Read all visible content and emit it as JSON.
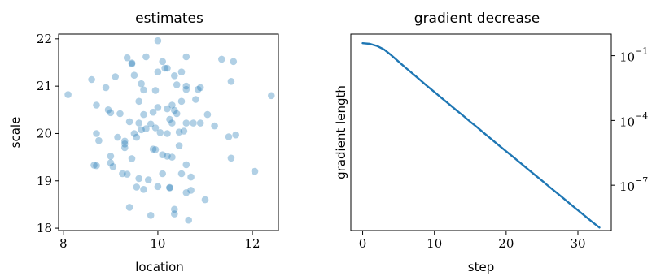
{
  "chart_data": [
    {
      "type": "scatter",
      "title": "estimates",
      "xlabel": "location",
      "ylabel": "scale",
      "xlim": [
        7.9,
        12.55
      ],
      "ylim": [
        17.95,
        22.1
      ],
      "xticks": [
        8,
        10,
        12
      ],
      "yticks": [
        18,
        19,
        20,
        21,
        22
      ],
      "grid": false,
      "marker_color": "#1f77b4",
      "marker_alpha": 0.35,
      "points": [
        [
          8.1,
          20.82
        ],
        [
          8.6,
          21.14
        ],
        [
          8.7,
          20.6
        ],
        [
          8.7,
          20.0
        ],
        [
          8.65,
          19.33
        ],
        [
          8.7,
          19.32
        ],
        [
          8.75,
          19.85
        ],
        [
          8.9,
          20.97
        ],
        [
          8.95,
          20.5
        ],
        [
          9.0,
          20.44
        ],
        [
          9.0,
          19.52
        ],
        [
          9.0,
          19.38
        ],
        [
          9.05,
          19.3
        ],
        [
          9.1,
          21.2
        ],
        [
          9.15,
          19.92
        ],
        [
          9.2,
          20.42
        ],
        [
          9.25,
          19.15
        ],
        [
          9.3,
          19.78
        ],
        [
          9.3,
          19.7
        ],
        [
          9.3,
          19.84
        ],
        [
          9.35,
          19.14
        ],
        [
          9.35,
          21.6
        ],
        [
          9.4,
          20.25
        ],
        [
          9.4,
          18.44
        ],
        [
          9.45,
          21.49
        ],
        [
          9.45,
          21.47
        ],
        [
          9.45,
          19.47
        ],
        [
          9.5,
          21.23
        ],
        [
          9.5,
          20.0
        ],
        [
          9.55,
          19.92
        ],
        [
          9.55,
          18.87
        ],
        [
          9.6,
          19.05
        ],
        [
          9.6,
          20.68
        ],
        [
          9.6,
          20.22
        ],
        [
          9.65,
          21.05
        ],
        [
          9.65,
          20.08
        ],
        [
          9.7,
          20.92
        ],
        [
          9.7,
          20.4
        ],
        [
          9.7,
          18.82
        ],
        [
          9.75,
          21.62
        ],
        [
          9.75,
          20.1
        ],
        [
          9.8,
          19.02
        ],
        [
          9.85,
          20.2
        ],
        [
          9.85,
          18.27
        ],
        [
          9.9,
          20.45
        ],
        [
          9.9,
          19.67
        ],
        [
          9.95,
          20.91
        ],
        [
          9.95,
          20.12
        ],
        [
          9.95,
          19.66
        ],
        [
          10.0,
          21.96
        ],
        [
          10.0,
          21.3
        ],
        [
          10.0,
          20.55
        ],
        [
          10.0,
          18.88
        ],
        [
          10.05,
          20.02
        ],
        [
          10.1,
          21.52
        ],
        [
          10.1,
          19.55
        ],
        [
          10.1,
          19.15
        ],
        [
          10.15,
          21.38
        ],
        [
          10.2,
          21.38
        ],
        [
          10.2,
          20.52
        ],
        [
          10.2,
          19.52
        ],
        [
          10.2,
          20.0
        ],
        [
          10.25,
          20.3
        ],
        [
          10.25,
          18.85
        ],
        [
          10.25,
          18.86
        ],
        [
          10.3,
          20.6
        ],
        [
          10.3,
          20.22
        ],
        [
          10.3,
          19.5
        ],
        [
          10.35,
          21.22
        ],
        [
          10.35,
          20.49
        ],
        [
          10.35,
          18.4
        ],
        [
          10.35,
          18.3
        ],
        [
          10.4,
          21.03
        ],
        [
          10.4,
          20.42
        ],
        [
          10.45,
          20.03
        ],
        [
          10.45,
          19.74
        ],
        [
          10.5,
          21.3
        ],
        [
          10.5,
          20.68
        ],
        [
          10.5,
          19.15
        ],
        [
          10.55,
          20.05
        ],
        [
          10.6,
          21.62
        ],
        [
          10.6,
          21.0
        ],
        [
          10.6,
          20.93
        ],
        [
          10.6,
          20.22
        ],
        [
          10.6,
          19.34
        ],
        [
          10.6,
          18.75
        ],
        [
          10.65,
          18.17
        ],
        [
          10.7,
          19.08
        ],
        [
          10.7,
          18.8
        ],
        [
          10.75,
          20.22
        ],
        [
          10.8,
          20.72
        ],
        [
          10.85,
          20.93
        ],
        [
          10.9,
          20.97
        ],
        [
          10.9,
          20.22
        ],
        [
          11.0,
          18.6
        ],
        [
          11.05,
          20.4
        ],
        [
          11.2,
          20.16
        ],
        [
          11.35,
          21.57
        ],
        [
          11.5,
          19.93
        ],
        [
          11.55,
          19.48
        ],
        [
          11.55,
          21.1
        ],
        [
          11.6,
          21.52
        ],
        [
          11.65,
          19.97
        ],
        [
          12.05,
          19.2
        ],
        [
          12.4,
          20.8
        ]
      ]
    },
    {
      "type": "line",
      "title": "gradient decrease",
      "xlabel": "step",
      "ylabel": "gradient length",
      "yscale": "log",
      "yaxis_side": "right",
      "xlim": [
        -1.65,
        34.65
      ],
      "ylim_log10": [
        -9.1,
        0.0
      ],
      "xticks": [
        0,
        10,
        20,
        30
      ],
      "yticks_log10": [
        -1,
        -4,
        -7
      ],
      "ytick_labels": [
        {
          "base": "10",
          "exp": "−1"
        },
        {
          "base": "10",
          "exp": "−4"
        },
        {
          "base": "10",
          "exp": "−7"
        }
      ],
      "grid": false,
      "line_color": "#1f77b4",
      "series": [
        {
          "x": [
            0,
            1,
            2,
            3,
            4,
            5,
            6,
            7,
            8,
            9,
            10,
            11,
            12,
            13,
            14,
            15,
            16,
            17,
            18,
            19,
            20,
            21,
            22,
            23,
            24,
            25,
            26,
            27,
            28,
            29,
            30,
            31,
            32,
            33
          ],
          "log10_y": [
            -0.42,
            -0.45,
            -0.55,
            -0.72,
            -0.98,
            -1.27,
            -1.56,
            -1.84,
            -2.12,
            -2.41,
            -2.68,
            -2.96,
            -3.23,
            -3.51,
            -3.78,
            -4.06,
            -4.33,
            -4.61,
            -4.88,
            -5.16,
            -5.43,
            -5.7,
            -5.97,
            -6.25,
            -6.52,
            -6.79,
            -7.07,
            -7.34,
            -7.61,
            -7.89,
            -8.16,
            -8.43,
            -8.7,
            -8.96
          ]
        }
      ]
    }
  ]
}
